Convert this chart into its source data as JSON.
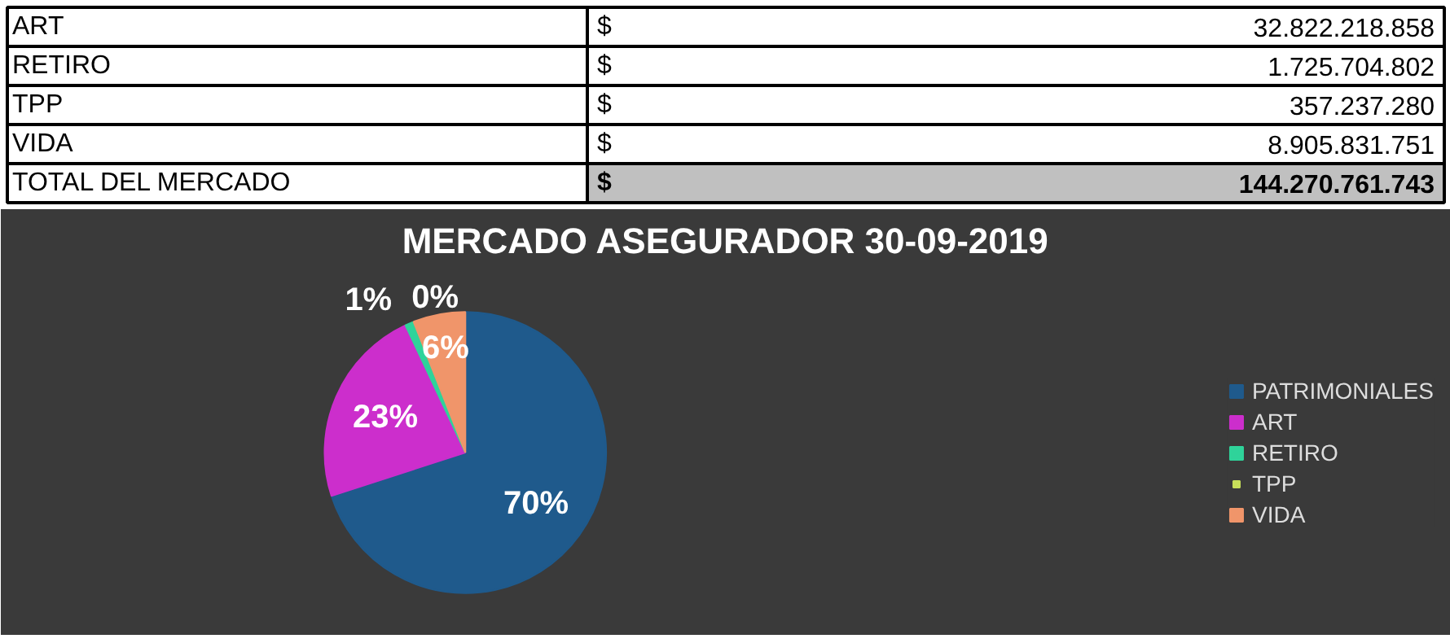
{
  "chart_data": [
    {
      "type": "other",
      "annotations": [
        "ART",
        "$",
        "32.822.218.858",
        "RETIRO",
        "$",
        "1.725.704.802",
        "TPP",
        "$",
        "357.237.280",
        "VIDA",
        "$",
        "8.905.831.751",
        "TOTAL DEL MERCADO",
        "$",
        "144.270.761.743"
      ]
    },
    {
      "type": "pie",
      "title": "MERCADO ASEGURADOR 30-09-2019",
      "categories": [
        "PATRIMONIALES",
        "ART",
        "RETIRO",
        "TPP",
        "VIDA"
      ],
      "values": [
        70,
        23,
        1,
        0,
        6
      ],
      "colors": [
        "#1f5a8c",
        "#cc2ecc",
        "#2fd39a",
        "#c8e05a",
        "#f0956a"
      ],
      "value_labels": [
        "70%",
        "23%",
        "1%",
        "0%",
        "6%"
      ],
      "legend": "right"
    }
  ]
}
